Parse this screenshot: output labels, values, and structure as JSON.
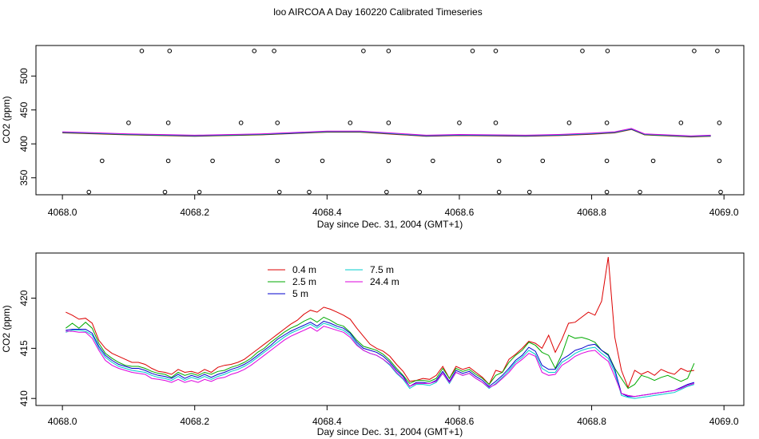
{
  "title": "loo AIRCOA A  Day 160220  Calibrated Timeseries",
  "chart_data": [
    {
      "type": "scatter",
      "xlabel": "Day since Dec. 31, 2004 (GMT+1)",
      "ylabel": "CO2 (ppm)",
      "xlim": [
        4067.96,
        4069.03
      ],
      "ylim": [
        325,
        545
      ],
      "xticks": [
        "4068.0",
        "4068.2",
        "4068.4",
        "4068.6",
        "4068.8",
        "4069.0"
      ],
      "xtick_values": [
        4068.0,
        4068.2,
        4068.4,
        4068.6,
        4068.8,
        4069.0
      ],
      "yticks": [
        "350",
        "400",
        "450",
        "500"
      ],
      "ytick_values": [
        350,
        400,
        450,
        500
      ],
      "grid": false,
      "point_groups": [
        {
          "y": 537,
          "x": [
            4068.12,
            4068.162,
            4068.29,
            4068.32,
            4068.455,
            4068.493,
            4068.62,
            4068.655,
            4068.786,
            4068.824,
            4068.955,
            4068.99
          ]
        },
        {
          "y": 431,
          "x": [
            4068.1,
            4068.16,
            4068.27,
            4068.325,
            4068.435,
            4068.493,
            4068.6,
            4068.655,
            4068.766,
            4068.823,
            4068.935,
            4068.993
          ]
        },
        {
          "y": 375,
          "x": [
            4068.06,
            4068.16,
            4068.227,
            4068.325,
            4068.393,
            4068.493,
            4068.56,
            4068.66,
            4068.726,
            4068.823,
            4068.893,
            4068.993
          ]
        },
        {
          "y": 329,
          "x": [
            4068.04,
            4068.155,
            4068.207,
            4068.328,
            4068.373,
            4068.49,
            4068.54,
            4068.66,
            4068.706,
            4068.823,
            4068.873,
            4068.995
          ]
        }
      ],
      "series": [
        {
          "name": "0.4 m",
          "color": "#dd0000"
        },
        {
          "name": "2.5 m",
          "color": "#00aa00"
        },
        {
          "name": "5 m",
          "color": "#0000cc"
        },
        {
          "name": "7.5 m",
          "color": "#00cccc"
        },
        {
          "name": "24.4 m",
          "color": "#dd00dd"
        }
      ],
      "series_x": [
        4068.0,
        4068.1,
        4068.2,
        4068.3,
        4068.35,
        4068.4,
        4068.45,
        4068.5,
        4068.55,
        4068.6,
        4068.7,
        4068.75,
        4068.8,
        4068.835,
        4068.86,
        4068.88,
        4068.95,
        4068.98
      ],
      "series_y": [
        417,
        414,
        412,
        414,
        416,
        418,
        418,
        415,
        412,
        413,
        412,
        413,
        415,
        417,
        422,
        414,
        411,
        412
      ]
    },
    {
      "type": "line",
      "xlabel": "Day since Dec. 31, 2004 (GMT+1)",
      "ylabel": "CO2 (ppm)",
      "xlim": [
        4067.96,
        4069.03
      ],
      "ylim": [
        409.3,
        424.5
      ],
      "xticks": [
        "4068.0",
        "4068.2",
        "4068.4",
        "4068.6",
        "4068.8",
        "4069.0"
      ],
      "xtick_values": [
        4068.0,
        4068.2,
        4068.4,
        4068.6,
        4068.8,
        4069.0
      ],
      "yticks": [
        "410",
        "415",
        "420"
      ],
      "ytick_values": [
        410,
        415,
        420
      ],
      "grid": false,
      "legend": "top-left",
      "x_start": 4068.005,
      "x_step": 0.01,
      "series": [
        {
          "name": "0.4 m",
          "color": "#dd0000",
          "values": [
            418.6,
            418.3,
            417.9,
            418.0,
            417.5,
            415.8,
            415.0,
            414.5,
            414.2,
            413.9,
            413.6,
            413.6,
            413.4,
            413.0,
            412.7,
            412.6,
            412.4,
            412.9,
            412.6,
            412.7,
            412.5,
            412.9,
            412.6,
            413.1,
            413.3,
            413.4,
            413.6,
            413.9,
            414.4,
            414.9,
            415.4,
            415.9,
            416.4,
            416.9,
            417.4,
            417.8,
            418.4,
            418.8,
            418.6,
            419.1,
            418.9,
            418.6,
            418.3,
            417.9,
            417.0,
            416.2,
            415.4,
            415.0,
            414.7,
            414.2,
            413.4,
            412.7,
            411.7,
            411.8,
            412.0,
            411.9,
            412.3,
            413.2,
            412.0,
            413.2,
            412.9,
            413.1,
            412.6,
            412.1,
            411.4,
            412.8,
            412.6,
            413.9,
            414.4,
            415.0,
            415.7,
            415.5,
            415.0,
            416.3,
            414.6,
            415.9,
            417.5,
            417.6,
            418.1,
            418.6,
            418.3,
            419.7,
            424.1,
            416.1,
            412.8,
            411.1,
            412.8,
            412.4,
            412.7,
            412.3,
            412.9,
            412.6,
            412.4,
            413.0,
            412.7,
            412.8
          ]
        },
        {
          "name": "2.5 m",
          "color": "#00aa00",
          "values": [
            417.0,
            417.5,
            417.0,
            417.6,
            417.0,
            415.5,
            414.5,
            414.0,
            413.6,
            413.3,
            413.2,
            413.2,
            413.0,
            412.7,
            412.5,
            412.4,
            412.1,
            412.6,
            412.3,
            412.5,
            412.3,
            412.6,
            412.4,
            412.7,
            412.8,
            413.1,
            413.3,
            413.6,
            414.0,
            414.6,
            415.0,
            415.6,
            416.1,
            416.6,
            417.0,
            417.3,
            417.7,
            418.0,
            417.6,
            418.1,
            417.8,
            417.4,
            417.2,
            416.6,
            415.8,
            415.2,
            415.0,
            414.8,
            414.4,
            413.8,
            413.0,
            412.3,
            411.5,
            411.8,
            411.8,
            411.7,
            412.0,
            413.0,
            412.0,
            413.0,
            412.7,
            412.9,
            412.4,
            412.0,
            411.4,
            412.3,
            412.6,
            413.6,
            414.3,
            414.8,
            415.6,
            415.3,
            414.6,
            414.3,
            413.0,
            414.4,
            416.3,
            416.0,
            416.1,
            415.9,
            415.6,
            414.8,
            414.4,
            413.0,
            412.0,
            411.0,
            411.4,
            412.3,
            412.1,
            411.8,
            412.1,
            412.3,
            412.0,
            411.7,
            412.0,
            413.5
          ]
        },
        {
          "name": "5 m",
          "color": "#0000cc",
          "values": [
            416.8,
            416.9,
            416.9,
            416.9,
            416.5,
            415.2,
            414.3,
            413.8,
            413.4,
            413.2,
            413.0,
            413.0,
            412.8,
            412.5,
            412.3,
            412.2,
            412.0,
            412.4,
            412.0,
            412.3,
            412.1,
            412.4,
            412.1,
            412.4,
            412.6,
            412.9,
            413.1,
            413.4,
            413.8,
            414.3,
            414.8,
            415.3,
            415.9,
            416.3,
            416.7,
            417.0,
            417.3,
            417.6,
            417.2,
            417.7,
            417.5,
            417.2,
            417.0,
            416.5,
            415.6,
            415.0,
            414.8,
            414.6,
            414.2,
            413.6,
            412.8,
            412.2,
            411.2,
            411.6,
            411.6,
            411.5,
            411.8,
            412.7,
            411.7,
            412.8,
            412.5,
            412.7,
            412.2,
            411.8,
            411.2,
            411.7,
            412.3,
            413.0,
            413.8,
            414.3,
            415.1,
            414.7,
            413.3,
            412.9,
            412.9,
            413.9,
            414.3,
            414.8,
            415.0,
            415.3,
            415.4,
            414.8,
            414.3,
            412.9,
            410.5,
            410.2,
            410.2,
            410.3,
            410.4,
            410.5,
            410.6,
            410.7,
            410.8,
            411.1,
            411.4,
            411.6
          ]
        },
        {
          "name": "7.5 m",
          "color": "#00cccc",
          "values": [
            416.6,
            416.8,
            416.8,
            416.7,
            416.3,
            415.0,
            414.1,
            413.6,
            413.2,
            413.0,
            412.8,
            412.7,
            412.6,
            412.3,
            412.1,
            412.0,
            411.8,
            412.2,
            411.8,
            412.1,
            411.9,
            412.2,
            411.9,
            412.2,
            412.4,
            412.7,
            412.9,
            413.2,
            413.6,
            414.1,
            414.6,
            415.1,
            415.6,
            416.1,
            416.5,
            416.8,
            417.1,
            417.4,
            417.0,
            417.5,
            417.3,
            417.0,
            416.8,
            416.3,
            415.4,
            414.8,
            414.5,
            414.3,
            413.9,
            413.3,
            412.5,
            411.9,
            411.0,
            411.4,
            411.4,
            411.3,
            411.6,
            412.5,
            411.5,
            412.6,
            412.3,
            412.5,
            412.0,
            411.6,
            411.0,
            411.5,
            412.1,
            412.8,
            413.6,
            414.1,
            414.8,
            414.4,
            413.0,
            412.6,
            412.6,
            413.6,
            414.0,
            414.5,
            414.8,
            415.0,
            415.1,
            414.5,
            414.0,
            412.6,
            410.3,
            410.1,
            410.0,
            410.1,
            410.2,
            410.3,
            410.4,
            410.5,
            410.6,
            410.9,
            411.2,
            411.4
          ]
        },
        {
          "name": "24.4 m",
          "color": "#dd00dd",
          "values": [
            416.7,
            416.7,
            416.6,
            416.6,
            416.0,
            414.8,
            413.8,
            413.3,
            413.0,
            412.8,
            412.6,
            412.5,
            412.4,
            412.0,
            411.9,
            411.8,
            411.6,
            411.9,
            411.6,
            411.8,
            411.6,
            411.9,
            411.7,
            412.0,
            412.1,
            412.4,
            412.6,
            412.9,
            413.3,
            413.8,
            414.3,
            414.8,
            415.3,
            415.8,
            416.2,
            416.5,
            416.8,
            417.1,
            416.7,
            417.2,
            417.0,
            416.8,
            416.6,
            416.1,
            415.3,
            414.8,
            414.5,
            414.3,
            413.9,
            413.4,
            412.6,
            412.0,
            411.2,
            411.5,
            411.5,
            411.5,
            411.7,
            412.5,
            411.6,
            412.6,
            412.3,
            412.5,
            412.0,
            411.6,
            411.1,
            411.4,
            412.0,
            412.6,
            413.4,
            413.9,
            414.5,
            414.2,
            412.6,
            412.3,
            412.4,
            413.3,
            413.7,
            414.2,
            414.5,
            414.7,
            414.8,
            414.2,
            413.7,
            412.2,
            410.5,
            410.3,
            410.2,
            410.3,
            410.4,
            410.5,
            410.6,
            410.7,
            410.8,
            411.0,
            411.3,
            411.5
          ]
        }
      ]
    }
  ]
}
